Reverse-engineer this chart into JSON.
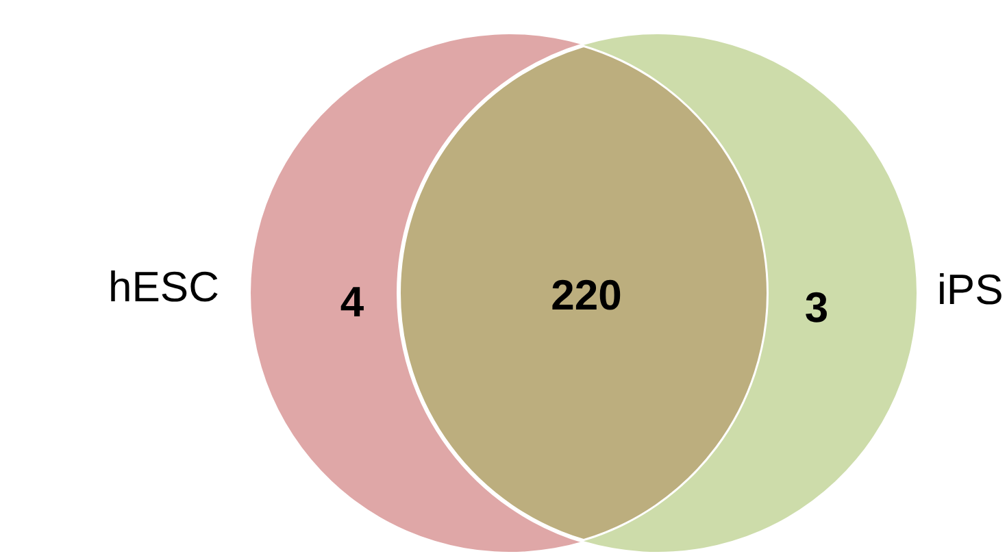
{
  "chart_data": {
    "type": "other",
    "categories": [
      "hESC",
      null,
      "iPS"
    ],
    "values": [
      4,
      220,
      3
    ],
    "colors": [
      "#dfa7a7",
      "#bcae7e",
      "#cddcaa"
    ],
    "data_labels": true
  }
}
